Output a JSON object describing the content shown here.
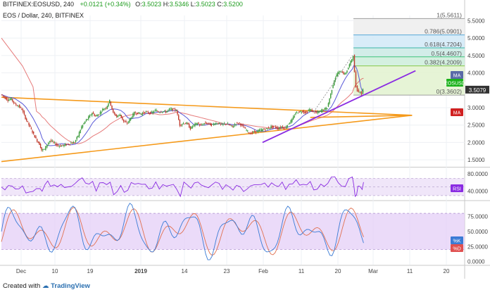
{
  "header": {
    "symbol": "BITFINEX:EOSUSD, 240",
    "ohlc": "0",
    "change": "+0.0121 (+0.34%)",
    "open_label": "O:",
    "open": "3.5023",
    "high_label": "H:",
    "high": "3.5346",
    "low_label": "L:",
    "low": "3.5023",
    "close_label": "C:",
    "close": "3.5200",
    "subtitle": "EOS / Dollar, 240, BITFINEX"
  },
  "footer": {
    "created_with": "Created with",
    "brand": "TradingView"
  },
  "badges": {
    "ma_upper": "MA",
    "eosusd": "EOSUSD",
    "last_price": "3.5079",
    "ma_lower": "MA",
    "rsi": "RSI",
    "stoch_k": "%K",
    "stoch_d": "%D"
  },
  "colors": {
    "candle_up": "#3a9a3a",
    "candle_down": "#c0392b",
    "triangle": "#f59a1b",
    "trendline": "#8a2be2",
    "ma_blue": "#5a5ad8",
    "ma_red": "#e05a5a",
    "rsi_line": "#8a2be2",
    "stoch_k": "#3a7bd5",
    "stoch_d": "#e07050",
    "ma_badge_blue": "#5a6aa8",
    "ma_badge_red": "#d02020",
    "eosusd_badge": "#1bb21b",
    "price_badge": "#333333",
    "rsi_badge": "#8a2be2",
    "k_badge": "#3a7bd5",
    "d_badge": "#e05050"
  },
  "chart_data": {
    "type": "candlestick",
    "price_axis": {
      "ylim": [
        1.3,
        5.65
      ],
      "ticks": [
        1.5,
        2.0,
        2.5,
        3.0,
        3.5,
        4.0,
        4.5,
        5.0,
        5.5
      ],
      "tick_labels": [
        "1.5000",
        "2.0000",
        "2.5000",
        "3.0000",
        "3.5000",
        "4.0000",
        "4.5000",
        "5.0000",
        "5.5000"
      ]
    },
    "x_axis": {
      "labels": [
        "Dec",
        "10",
        "19",
        "2019",
        "14",
        "23",
        "Feb",
        "11",
        "20",
        "Mar",
        "11",
        "20"
      ]
    },
    "price_path": [
      [
        0,
        3.38
      ],
      [
        5,
        3.3
      ],
      [
        10,
        3.22
      ],
      [
        15,
        3.25
      ],
      [
        20,
        3.1
      ],
      [
        25,
        3.05
      ],
      [
        30,
        2.95
      ],
      [
        35,
        2.7
      ],
      [
        40,
        2.5
      ],
      [
        45,
        2.3
      ],
      [
        50,
        2.1
      ],
      [
        55,
        1.95
      ],
      [
        58,
        1.78
      ],
      [
        62,
        1.8
      ],
      [
        66,
        1.95
      ],
      [
        70,
        2.05
      ],
      [
        75,
        2.0
      ],
      [
        80,
        1.92
      ],
      [
        85,
        1.9
      ],
      [
        90,
        1.92
      ],
      [
        95,
        1.95
      ],
      [
        100,
        1.98
      ],
      [
        105,
        2.0
      ],
      [
        110,
        2.2
      ],
      [
        115,
        2.45
      ],
      [
        120,
        2.6
      ],
      [
        125,
        2.72
      ],
      [
        130,
        2.85
      ],
      [
        135,
        2.75
      ],
      [
        140,
        2.82
      ],
      [
        145,
        2.95
      ],
      [
        150,
        3.0
      ],
      [
        155,
        3.2
      ],
      [
        160,
        2.85
      ],
      [
        165,
        2.75
      ],
      [
        170,
        2.8
      ],
      [
        175,
        2.6
      ],
      [
        180,
        2.55
      ],
      [
        185,
        2.7
      ],
      [
        190,
        2.85
      ],
      [
        195,
        2.85
      ],
      [
        200,
        2.82
      ],
      [
        205,
        2.88
      ],
      [
        210,
        2.85
      ],
      [
        215,
        2.85
      ],
      [
        220,
        2.92
      ],
      [
        225,
        2.88
      ],
      [
        230,
        2.9
      ],
      [
        235,
        2.88
      ],
      [
        240,
        2.95
      ],
      [
        245,
        2.95
      ],
      [
        250,
        2.93
      ],
      [
        255,
        2.5
      ],
      [
        260,
        2.55
      ],
      [
        265,
        2.55
      ],
      [
        270,
        2.4
      ],
      [
        275,
        2.5
      ],
      [
        280,
        2.55
      ],
      [
        285,
        2.48
      ],
      [
        290,
        2.55
      ],
      [
        295,
        2.55
      ],
      [
        300,
        2.5
      ],
      [
        305,
        2.55
      ],
      [
        310,
        2.55
      ],
      [
        315,
        2.5
      ],
      [
        320,
        2.55
      ],
      [
        325,
        2.5
      ],
      [
        330,
        2.45
      ],
      [
        335,
        2.55
      ],
      [
        340,
        2.55
      ],
      [
        345,
        2.45
      ],
      [
        350,
        2.35
      ],
      [
        355,
        2.25
      ],
      [
        360,
        2.3
      ],
      [
        365,
        2.32
      ],
      [
        370,
        2.35
      ],
      [
        375,
        2.38
      ],
      [
        380,
        2.4
      ],
      [
        385,
        2.45
      ],
      [
        390,
        2.45
      ],
      [
        395,
        2.4
      ],
      [
        400,
        2.45
      ],
      [
        405,
        2.42
      ],
      [
        410,
        2.55
      ],
      [
        415,
        2.65
      ],
      [
        420,
        2.85
      ],
      [
        425,
        2.88
      ],
      [
        430,
        2.9
      ],
      [
        435,
        2.85
      ],
      [
        440,
        2.95
      ],
      [
        445,
        2.88
      ],
      [
        450,
        2.85
      ],
      [
        455,
        2.9
      ],
      [
        460,
        2.95
      ],
      [
        465,
        3.0
      ],
      [
        470,
        3.4
      ],
      [
        475,
        3.8
      ],
      [
        480,
        4.0
      ],
      [
        485,
        4.05
      ],
      [
        490,
        3.95
      ],
      [
        495,
        4.15
      ],
      [
        500,
        4.4
      ],
      [
        502,
        4.5
      ],
      [
        504,
        4.0
      ],
      [
        506,
        3.6
      ],
      [
        508,
        3.5
      ],
      [
        510,
        3.45
      ],
      [
        512,
        3.48
      ],
      [
        514,
        3.4
      ],
      [
        516,
        3.52
      ]
    ],
    "triangle": {
      "upper": [
        [
          0,
          3.3
        ],
        [
          585,
          2.78
        ]
      ],
      "lower": [
        [
          0,
          1.45
        ],
        [
          585,
          2.78
        ]
      ],
      "apex_tail": [
        [
          440,
          2.72
        ],
        [
          585,
          2.78
        ]
      ]
    },
    "trendline": [
      [
        372,
        2.0
      ],
      [
        590,
        4.06
      ]
    ],
    "fibonacci": {
      "range": [
        3.3602,
        5.5611
      ],
      "levels": [
        {
          "ratio": "1",
          "value": "5.5611",
          "label": "1(5.5611)"
        },
        {
          "ratio": "0.786",
          "value": "5.0901",
          "label": "0.786(5.0901)"
        },
        {
          "ratio": "0.618",
          "value": "4.7204",
          "label": "0.618(4.7204)"
        },
        {
          "ratio": "0.5",
          "value": "4.4607",
          "label": "0.5(4.4607)"
        },
        {
          "ratio": "0.382",
          "value": "4.2009",
          "label": "0.382(4.2009)"
        },
        {
          "ratio": "0",
          "value": "3.3602",
          "label": "0(3.3602)"
        }
      ]
    },
    "rsi": {
      "ylim": [
        20,
        95
      ],
      "ticks": [
        40,
        80
      ],
      "tick_labels": [
        "40.0000",
        "80.0000"
      ],
      "band": [
        30,
        70
      ]
    },
    "stochastic": {
      "ylim": [
        -5,
        100
      ],
      "ticks": [
        0,
        25,
        50,
        75
      ],
      "tick_labels": [
        "0.0000",
        "25.0000",
        "50.0000",
        "75.0000"
      ],
      "band": [
        20,
        80
      ]
    }
  }
}
